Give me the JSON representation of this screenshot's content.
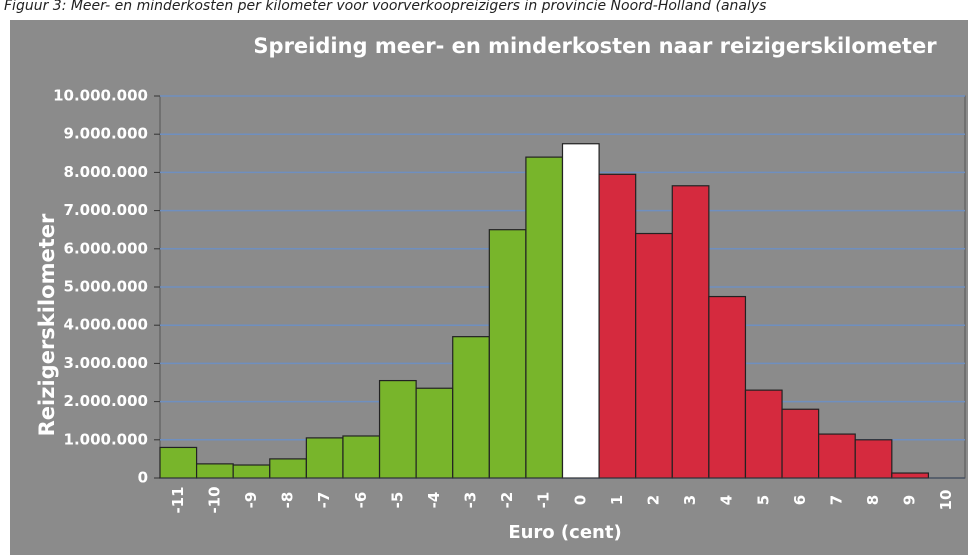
{
  "caption": "Figuur 3: Meer- en minderkosten per kilometer voor voorverkoopreizigers in provincie Noord-Holland (analys",
  "chart_data": {
    "type": "bar",
    "title": "Spreiding meer- en minderkosten naar reizigerskilometer",
    "x_label": "Euro (cent)",
    "y_label": "Reizigerskilometer",
    "categories": [
      "-11",
      "-10",
      "-9",
      "-8",
      "-7",
      "-6",
      "-5",
      "-4",
      "-3",
      "-2",
      "-1",
      "0",
      "1",
      "2",
      "3",
      "4",
      "5",
      "6",
      "7",
      "8",
      "9",
      "10"
    ],
    "values": [
      800000,
      370000,
      340000,
      500000,
      1050000,
      1100000,
      2550000,
      2350000,
      3700000,
      6500000,
      8400000,
      8750000,
      7950000,
      6400000,
      7650000,
      4750000,
      2300000,
      1800000,
      1150000,
      1000000,
      130000,
      0
    ],
    "colors": [
      "#78b52b",
      "#78b52b",
      "#78b52b",
      "#78b52b",
      "#78b52b",
      "#78b52b",
      "#78b52b",
      "#78b52b",
      "#78b52b",
      "#78b52b",
      "#78b52b",
      "#ffffff",
      "#d52a3e",
      "#d52a3e",
      "#d52a3e",
      "#d52a3e",
      "#d52a3e",
      "#d52a3e",
      "#d52a3e",
      "#d52a3e",
      "#d52a3e",
      "#d52a3e"
    ],
    "ylim": [
      0,
      10000000
    ],
    "yticks": [
      0,
      {
        "value": 1000000,
        "label": "1.000.000"
      },
      {
        "value": 2000000,
        "label": "2.000.000"
      },
      {
        "value": 3000000,
        "label": "3.000.000"
      },
      {
        "value": 4000000,
        "label": "4.000.000"
      },
      {
        "value": 5000000,
        "label": "5.000.000"
      },
      {
        "value": 6000000,
        "label": "6.000.000"
      },
      {
        "value": 7000000,
        "label": "7.000.000"
      },
      {
        "value": 8000000,
        "label": "8.000.000"
      },
      {
        "value": 9000000,
        "label": "9.000.000"
      },
      {
        "value": 10000000,
        "label": "10.000.000"
      }
    ],
    "grid": true
  }
}
